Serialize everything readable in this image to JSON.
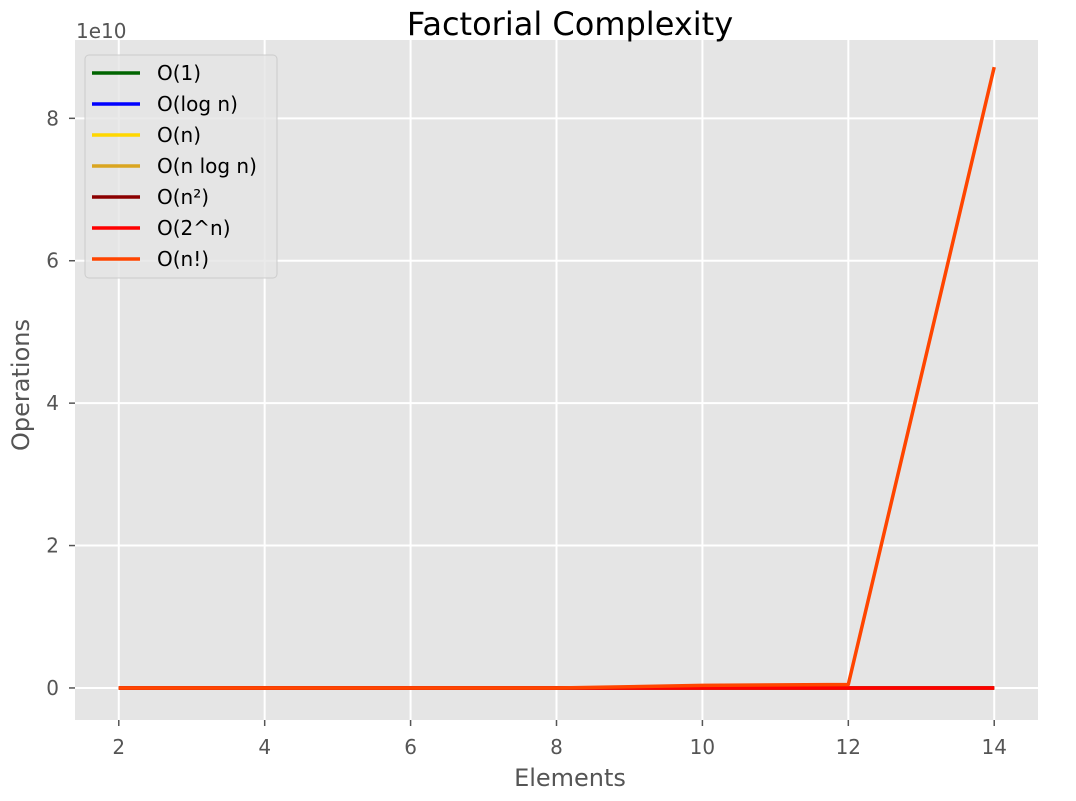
{
  "chart_data": {
    "type": "line",
    "title": "Factorial Complexity",
    "xlabel": "Elements",
    "ylabel": "Operations",
    "y_offset_text": "1e10",
    "xlim": [
      1.4,
      14.6
    ],
    "ylim": [
      -0.45,
      9.1
    ],
    "y_units": "1e10 operations",
    "x_ticks": [
      2,
      4,
      6,
      8,
      10,
      12,
      14
    ],
    "x_tick_labels": [
      "2",
      "4",
      "6",
      "8",
      "10",
      "12",
      "14"
    ],
    "y_ticks": [
      0,
      2,
      4,
      6,
      8
    ],
    "y_tick_labels": [
      "0",
      "2",
      "4",
      "6",
      "8"
    ],
    "grid": true,
    "legend_position": "upper-left",
    "background": "#e5e5e5",
    "grid_color": "#ffffff",
    "x": [
      2,
      4,
      6,
      8,
      10,
      12,
      14
    ],
    "series": [
      {
        "name": "O(1)",
        "color": "#006400",
        "values": [
          0,
          0,
          0,
          0,
          0,
          0,
          0
        ]
      },
      {
        "name": "O(log n)",
        "color": "#0000ff",
        "values": [
          0,
          0,
          0,
          0,
          0,
          0,
          0
        ]
      },
      {
        "name": "O(n)",
        "color": "#ffd700",
        "values": [
          0,
          0,
          0,
          0,
          0,
          0,
          0
        ]
      },
      {
        "name": "O(n log n)",
        "color": "#daa520",
        "values": [
          0,
          0,
          0,
          0,
          0,
          0,
          0
        ]
      },
      {
        "name": "O(n²)",
        "color": "#8b0000",
        "values": [
          0,
          0,
          0,
          0,
          0,
          0,
          0
        ]
      },
      {
        "name": "O(2^n)",
        "color": "#ff0000",
        "values": [
          0,
          0,
          0,
          0,
          0,
          0,
          0
        ]
      },
      {
        "name": "O(n!)",
        "color": "#ff4500",
        "values": [
          0,
          0,
          0,
          0,
          0.0363,
          0.0479,
          8.72
        ]
      }
    ]
  }
}
